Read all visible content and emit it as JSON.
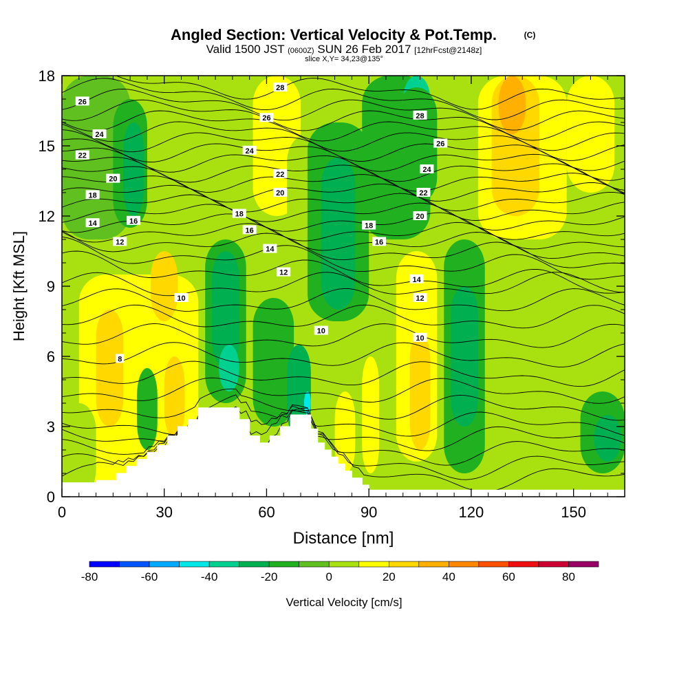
{
  "chart_data": {
    "type": "heatmap",
    "title": "Angled Section: Vertical Velocity & Pot.Temp.",
    "title_unit": "(C)",
    "subtitle": {
      "valid": "Valid 1500 JST",
      "utc": "(0600Z)",
      "date": "SUN 26 Feb 2017",
      "forecast": "[12hrFcst@2148z]",
      "slice": "slice X,Y= 34,23@135°"
    },
    "xlabel": "Distance [nm]",
    "ylabel": "Height [Kft MSL]",
    "xlim": [
      0,
      165
    ],
    "ylim": [
      0,
      18
    ],
    "x_ticks": [
      "0",
      "30",
      "60",
      "90",
      "120",
      "150"
    ],
    "y_ticks": [
      "0",
      "3",
      "6",
      "9",
      "12",
      "15",
      "18"
    ],
    "colorbar": {
      "label": "Vertical Velocity [cm/s]",
      "ticks": [
        "-80",
        "-60",
        "-40",
        "-20",
        "0",
        "20",
        "40",
        "60",
        "80"
      ],
      "levels": [
        -80,
        -70,
        -60,
        -50,
        -40,
        -30,
        -20,
        -10,
        0,
        10,
        20,
        30,
        40,
        50,
        60,
        70,
        80,
        90
      ],
      "colors": [
        "#0000ff",
        "#0055ff",
        "#00aaff",
        "#00e8e8",
        "#00d090",
        "#00b050",
        "#20b020",
        "#60c020",
        "#a8e010",
        "#ffff00",
        "#ffd800",
        "#ffb000",
        "#ff8800",
        "#ff5000",
        "#ee1010",
        "#cc0033",
        "#990066",
        "#660099"
      ]
    },
    "terrain": [
      [
        0,
        0.6
      ],
      [
        10,
        0.6
      ],
      [
        10,
        0.7
      ],
      [
        16,
        0.7
      ],
      [
        16,
        1.0
      ],
      [
        19,
        1.0
      ],
      [
        19,
        1.3
      ],
      [
        22,
        1.3
      ],
      [
        22,
        1.6
      ],
      [
        25,
        1.6
      ],
      [
        25,
        1.9
      ],
      [
        28,
        1.9
      ],
      [
        28,
        2.2
      ],
      [
        31,
        2.2
      ],
      [
        31,
        2.6
      ],
      [
        34,
        2.6
      ],
      [
        34,
        3.0
      ],
      [
        37,
        3.0
      ],
      [
        37,
        3.3
      ],
      [
        40,
        3.3
      ],
      [
        40,
        3.8
      ],
      [
        52,
        3.8
      ],
      [
        52,
        3.3
      ],
      [
        55,
        3.3
      ],
      [
        55,
        2.6
      ],
      [
        58,
        2.6
      ],
      [
        58,
        2.3
      ],
      [
        61,
        2.3
      ],
      [
        61,
        2.6
      ],
      [
        64,
        2.6
      ],
      [
        64,
        3.0
      ],
      [
        67,
        3.0
      ],
      [
        67,
        3.5
      ],
      [
        73,
        3.5
      ],
      [
        73,
        2.9
      ],
      [
        75,
        2.9
      ],
      [
        75,
        2.3
      ],
      [
        77,
        2.3
      ],
      [
        77,
        2.0
      ],
      [
        79,
        2.0
      ],
      [
        79,
        1.7
      ],
      [
        81,
        1.7
      ],
      [
        81,
        1.4
      ],
      [
        83,
        1.4
      ],
      [
        83,
        1.1
      ],
      [
        85,
        1.1
      ],
      [
        85,
        0.8
      ],
      [
        88,
        0.8
      ],
      [
        88,
        0.5
      ],
      [
        90,
        0.5
      ],
      [
        90,
        0
      ]
    ],
    "vertical_velocity_cells": [
      {
        "x": 0,
        "y": 0,
        "w": 165,
        "h": 18,
        "v": 5
      },
      {
        "x": 0,
        "y": 11,
        "w": 20,
        "h": 7,
        "v": -5
      },
      {
        "x": 15,
        "y": 11.5,
        "w": 10,
        "h": 5.5,
        "v": -15
      },
      {
        "x": 18,
        "y": 12,
        "w": 6,
        "h": 4,
        "v": -25
      },
      {
        "x": 5,
        "y": 0.5,
        "w": 35,
        "h": 9,
        "v": 12
      },
      {
        "x": 10,
        "y": 3,
        "w": 8,
        "h": 5,
        "v": 20
      },
      {
        "x": 26,
        "y": 7.5,
        "w": 8,
        "h": 3,
        "v": 20
      },
      {
        "x": 30,
        "y": 2.5,
        "w": 6,
        "h": 3.5,
        "v": 22
      },
      {
        "x": 22,
        "y": 2,
        "w": 6,
        "h": 3.5,
        "v": -12
      },
      {
        "x": 42,
        "y": 4,
        "w": 12,
        "h": 7,
        "v": -12
      },
      {
        "x": 44,
        "y": 5.5,
        "w": 8,
        "h": 5,
        "v": -22
      },
      {
        "x": 46,
        "y": 4.5,
        "w": 6,
        "h": 2,
        "v": -32
      },
      {
        "x": 56,
        "y": 3,
        "w": 12,
        "h": 5.5,
        "v": -14
      },
      {
        "x": 66,
        "y": 2.5,
        "w": 7,
        "h": 4,
        "v": -26
      },
      {
        "x": 71,
        "y": 3.5,
        "w": 2,
        "h": 1,
        "v": -45
      },
      {
        "x": 56,
        "y": 12,
        "w": 14,
        "h": 6,
        "v": 12
      },
      {
        "x": 66,
        "y": 10.5,
        "w": 12,
        "h": 5,
        "v": 6
      },
      {
        "x": 72,
        "y": 7.5,
        "w": 18,
        "h": 8.5,
        "v": -12
      },
      {
        "x": 76,
        "y": 8,
        "w": 10,
        "h": 6.5,
        "v": -22
      },
      {
        "x": 88,
        "y": 11,
        "w": 20,
        "h": 7,
        "v": -14
      },
      {
        "x": 100,
        "y": 16,
        "w": 8,
        "h": 2,
        "v": -40
      },
      {
        "x": 98,
        "y": 12.5,
        "w": 12,
        "h": 5,
        "v": -20
      },
      {
        "x": 98,
        "y": 1.5,
        "w": 12,
        "h": 9,
        "v": 14
      },
      {
        "x": 102,
        "y": 2,
        "w": 6,
        "h": 5,
        "v": 22
      },
      {
        "x": 112,
        "y": 1,
        "w": 12,
        "h": 10,
        "v": -12
      },
      {
        "x": 114,
        "y": 3,
        "w": 8,
        "h": 6,
        "v": -26
      },
      {
        "x": 122,
        "y": 11,
        "w": 26,
        "h": 7,
        "v": 14
      },
      {
        "x": 126,
        "y": 12,
        "w": 14,
        "h": 6,
        "v": 22
      },
      {
        "x": 128,
        "y": 15.5,
        "w": 8,
        "h": 2.5,
        "v": 34
      },
      {
        "x": 148,
        "y": 13,
        "w": 14,
        "h": 5,
        "v": 14
      },
      {
        "x": 138,
        "y": 0.5,
        "w": 16,
        "h": 6,
        "v": 6
      },
      {
        "x": 152,
        "y": 1,
        "w": 13,
        "h": 3.5,
        "v": -12
      },
      {
        "x": 156,
        "y": 1.5,
        "w": 8,
        "h": 2,
        "v": -24
      },
      {
        "x": 80,
        "y": 1,
        "w": 6,
        "h": 3.5,
        "v": 14
      },
      {
        "x": 88,
        "y": 1,
        "w": 5,
        "h": 5,
        "v": 12
      },
      {
        "x": 0,
        "y": 0,
        "w": 10,
        "h": 4,
        "v": 8
      }
    ],
    "isentrope_labels": [
      {
        "text": "26",
        "x": 6,
        "y": 16.9
      },
      {
        "text": "24",
        "x": 11,
        "y": 15.5
      },
      {
        "text": "22",
        "x": 6,
        "y": 14.6
      },
      {
        "text": "20",
        "x": 15,
        "y": 13.6
      },
      {
        "text": "18",
        "x": 9,
        "y": 12.9
      },
      {
        "text": "16",
        "x": 21,
        "y": 11.8
      },
      {
        "text": "14",
        "x": 9,
        "y": 11.7
      },
      {
        "text": "12",
        "x": 17,
        "y": 10.9
      },
      {
        "text": "10",
        "x": 35,
        "y": 8.5
      },
      {
        "text": "8",
        "x": 17,
        "y": 5.9
      },
      {
        "text": "28",
        "x": 64,
        "y": 17.5
      },
      {
        "text": "26",
        "x": 60,
        "y": 16.2
      },
      {
        "text": "24",
        "x": 55,
        "y": 14.8
      },
      {
        "text": "22",
        "x": 64,
        "y": 13.8
      },
      {
        "text": "20",
        "x": 64,
        "y": 13.0
      },
      {
        "text": "18",
        "x": 52,
        "y": 12.1
      },
      {
        "text": "16",
        "x": 55,
        "y": 11.4
      },
      {
        "text": "14",
        "x": 61,
        "y": 10.6
      },
      {
        "text": "12",
        "x": 65,
        "y": 9.6
      },
      {
        "text": "10",
        "x": 76,
        "y": 7.1
      },
      {
        "text": "28",
        "x": 105,
        "y": 16.3
      },
      {
        "text": "26",
        "x": 111,
        "y": 15.1
      },
      {
        "text": "24",
        "x": 107,
        "y": 14.0
      },
      {
        "text": "22",
        "x": 106,
        "y": 13.0
      },
      {
        "text": "20",
        "x": 105,
        "y": 12.0
      },
      {
        "text": "18",
        "x": 90,
        "y": 11.6
      },
      {
        "text": "16",
        "x": 93,
        "y": 10.9
      },
      {
        "text": "14",
        "x": 104,
        "y": 9.3
      },
      {
        "text": "12",
        "x": 105,
        "y": 8.5
      },
      {
        "text": "10",
        "x": 105,
        "y": 6.8
      }
    ],
    "isentrope_count_heights": [
      0.8,
      1.3,
      1.9,
      2.5,
      3.1,
      3.8,
      4.5,
      5.2,
      6.0,
      6.8,
      7.6,
      8.3,
      9.0,
      9.6,
      10.2,
      10.7,
      11.1,
      11.5,
      11.9,
      12.3,
      12.7,
      13.1,
      13.5,
      13.9,
      14.3,
      14.7,
      15.1,
      15.5,
      15.9,
      16.3,
      16.7,
      17.1,
      17.5
    ]
  }
}
